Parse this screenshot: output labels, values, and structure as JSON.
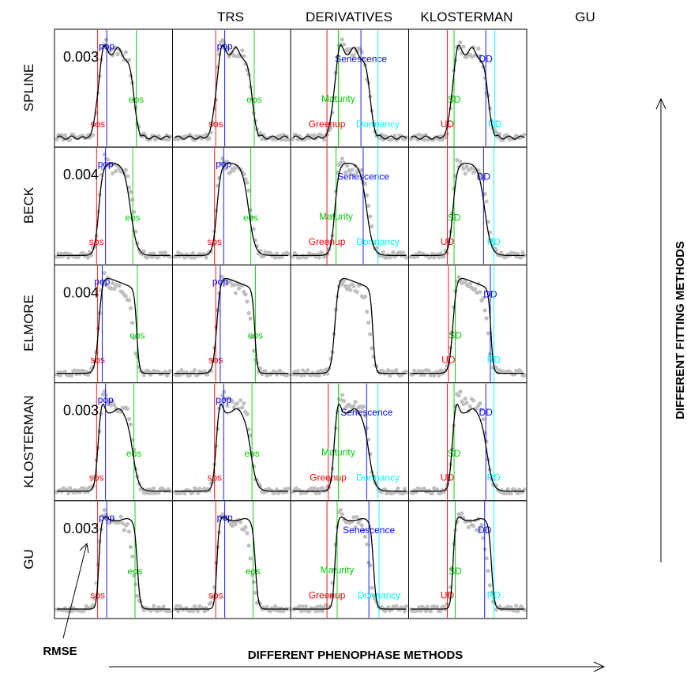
{
  "figure": {
    "column_titles": [
      "TRS",
      "DERIVATIVES",
      "KLOSTERMAN",
      "GU"
    ],
    "row_titles": [
      "SPLINE",
      "BECK",
      "ELMORE",
      "KLOSTERMAN",
      "GU"
    ],
    "x_axis_caption": "DIFFERENT PHENOPHASE METHODS",
    "y_axis_caption": "DIFFERENT FITTING METHODS",
    "rmse_caption": "RMSE",
    "colors": {
      "fit_line": "#000000",
      "observations": "#bfbfbf",
      "red": "#ff0000",
      "blue": "#0000ff",
      "green": "#00cc00",
      "cyan": "#00ffff",
      "frame": "#000000"
    }
  },
  "chart_data": {
    "type": "line",
    "layout": "grid 5 rows x 4 columns",
    "grid": false,
    "legend": "none",
    "x_range": [
      0,
      1
    ],
    "y_range": [
      0,
      1
    ],
    "rows": [
      {
        "name": "SPLINE",
        "rmse": "0.003",
        "shape": "spline"
      },
      {
        "name": "BECK",
        "rmse": "0.004",
        "shape": "beck"
      },
      {
        "name": "ELMORE",
        "rmse": "0.004",
        "shape": "elmore"
      },
      {
        "name": "KLOSTERMAN",
        "rmse": "0.003",
        "shape": "klosterman"
      },
      {
        "name": "GU",
        "rmse": "0.003",
        "shape": "gu"
      }
    ],
    "columns": [
      {
        "name": "TRS",
        "phases": [
          {
            "label": "sos",
            "color": "red"
          },
          {
            "label": "pop",
            "color": "blue"
          },
          {
            "label": "eos",
            "color": "green"
          }
        ]
      },
      {
        "name": "DERIVATIVES",
        "phases": [
          {
            "label": "sos",
            "color": "red"
          },
          {
            "label": "pop",
            "color": "blue"
          },
          {
            "label": "eos",
            "color": "green"
          }
        ]
      },
      {
        "name": "KLOSTERMAN",
        "phases": [
          {
            "label": "Greenup",
            "color": "red"
          },
          {
            "label": "Maturity",
            "color": "green"
          },
          {
            "label": "Senescence",
            "color": "blue"
          },
          {
            "label": "Dormancy",
            "color": "cyan"
          }
        ]
      },
      {
        "name": "GU",
        "phases": [
          {
            "label": "UD",
            "color": "red"
          },
          {
            "label": "SD",
            "color": "green"
          },
          {
            "label": "DD",
            "color": "blue"
          },
          {
            "label": "RD",
            "color": "cyan"
          }
        ]
      }
    ],
    "phase_positions": {
      "SPLINE": {
        "TRS": [
          0.36,
          0.44,
          0.7
        ],
        "DERIVATIVES": [
          0.36,
          0.44,
          0.7
        ],
        "KLOSTERMAN": [
          0.3,
          0.4,
          0.6,
          0.75
        ],
        "GU": [
          0.32,
          0.38,
          0.66,
          0.74
        ]
      },
      "BECK": {
        "TRS": [
          0.35,
          0.43,
          0.67
        ],
        "DERIVATIVES": [
          0.35,
          0.43,
          0.67
        ],
        "KLOSTERMAN": [
          0.3,
          0.38,
          0.62,
          0.75
        ],
        "GU": [
          0.32,
          0.38,
          0.64,
          0.73
        ]
      },
      "ELMORE": {
        "TRS": [
          0.36,
          0.4,
          0.71
        ],
        "DERIVATIVES": [
          0.36,
          0.4,
          0.71
        ],
        "KLOSTERMAN": null,
        "GU": [
          0.33,
          0.39,
          0.7,
          0.73
        ]
      },
      "KLOSTERMAN": {
        "TRS": [
          0.35,
          0.43,
          0.68
        ],
        "DERIVATIVES": [
          0.35,
          0.43,
          0.68
        ],
        "KLOSTERMAN": [
          0.31,
          0.4,
          0.65,
          0.75
        ],
        "GU": [
          0.32,
          0.38,
          0.66,
          0.73
        ]
      },
      "GU": {
        "TRS": [
          0.36,
          0.44,
          0.69
        ],
        "DERIVATIVES": [
          0.36,
          0.44,
          0.69
        ],
        "KLOSTERMAN": [
          0.3,
          0.39,
          0.67,
          0.76
        ],
        "GU": [
          0.32,
          0.39,
          0.65,
          0.73
        ]
      }
    }
  }
}
